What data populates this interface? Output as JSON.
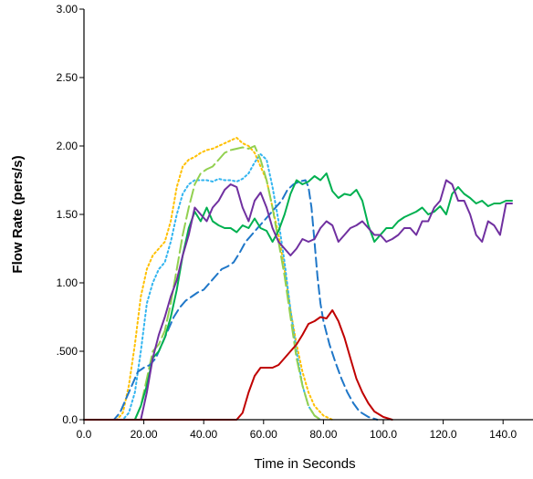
{
  "chart_data": {
    "type": "line",
    "title": "",
    "xlabel": "Time in Seconds",
    "ylabel": "Flow Rate (pers/s)",
    "xlim": [
      0,
      150
    ],
    "ylim": [
      0,
      3
    ],
    "x_ticks": [
      "0.0",
      "20.00",
      "40.00",
      "60.00",
      "80.00",
      "100.0",
      "120.0",
      "140.0"
    ],
    "x_tick_values": [
      0,
      20,
      40,
      60,
      80,
      100,
      120,
      140
    ],
    "y_ticks": [
      "0.0",
      ".500",
      "1.00",
      "1.50",
      "2.00",
      "2.50",
      "3.00"
    ],
    "y_tick_values": [
      0,
      0.5,
      1.0,
      1.5,
      2.0,
      2.5,
      3.0
    ],
    "grid": false,
    "legend": "none",
    "series": [
      {
        "color": "#ffc000",
        "dash": "dotted",
        "points": [
          [
            0,
            0
          ],
          [
            11,
            0
          ],
          [
            13,
            0.05
          ],
          [
            15,
            0.25
          ],
          [
            17,
            0.55
          ],
          [
            19,
            0.9
          ],
          [
            21,
            1.1
          ],
          [
            23,
            1.2
          ],
          [
            25,
            1.25
          ],
          [
            27,
            1.3
          ],
          [
            29,
            1.45
          ],
          [
            31,
            1.7
          ],
          [
            33,
            1.85
          ],
          [
            35,
            1.9
          ],
          [
            37,
            1.92
          ],
          [
            39,
            1.95
          ],
          [
            41,
            1.97
          ],
          [
            43,
            1.98
          ],
          [
            45,
            2.0
          ],
          [
            47,
            2.02
          ],
          [
            49,
            2.04
          ],
          [
            51,
            2.06
          ],
          [
            53,
            2.02
          ],
          [
            55,
            2.0
          ],
          [
            57,
            1.95
          ],
          [
            59,
            1.85
          ],
          [
            61,
            1.75
          ],
          [
            63,
            1.55
          ],
          [
            65,
            1.35
          ],
          [
            67,
            1.1
          ],
          [
            69,
            0.8
          ],
          [
            71,
            0.55
          ],
          [
            73,
            0.35
          ],
          [
            75,
            0.2
          ],
          [
            77,
            0.1
          ],
          [
            80,
            0.03
          ],
          [
            83,
            0
          ]
        ]
      },
      {
        "color": "#33b5f0",
        "dash": "dotted",
        "points": [
          [
            0,
            0
          ],
          [
            13,
            0
          ],
          [
            15,
            0.05
          ],
          [
            17,
            0.2
          ],
          [
            19,
            0.5
          ],
          [
            21,
            0.85
          ],
          [
            23,
            1.0
          ],
          [
            25,
            1.1
          ],
          [
            27,
            1.15
          ],
          [
            29,
            1.3
          ],
          [
            31,
            1.5
          ],
          [
            33,
            1.65
          ],
          [
            35,
            1.72
          ],
          [
            37,
            1.75
          ],
          [
            39,
            1.75
          ],
          [
            41,
            1.75
          ],
          [
            43,
            1.74
          ],
          [
            45,
            1.76
          ],
          [
            47,
            1.75
          ],
          [
            49,
            1.75
          ],
          [
            51,
            1.74
          ],
          [
            53,
            1.76
          ],
          [
            55,
            1.8
          ],
          [
            57,
            1.88
          ],
          [
            59,
            1.94
          ],
          [
            61,
            1.9
          ],
          [
            63,
            1.7
          ],
          [
            65,
            1.45
          ],
          [
            67,
            1.15
          ],
          [
            69,
            0.8
          ],
          [
            71,
            0.5
          ],
          [
            73,
            0.25
          ],
          [
            75,
            0.1
          ],
          [
            77,
            0.03
          ],
          [
            79,
            0
          ]
        ]
      },
      {
        "color": "#92d050",
        "dash": "longdash",
        "points": [
          [
            0,
            0
          ],
          [
            17,
            0
          ],
          [
            19,
            0.1
          ],
          [
            21,
            0.3
          ],
          [
            23,
            0.5
          ],
          [
            25,
            0.55
          ],
          [
            27,
            0.65
          ],
          [
            29,
            0.85
          ],
          [
            31,
            1.1
          ],
          [
            33,
            1.35
          ],
          [
            35,
            1.55
          ],
          [
            37,
            1.72
          ],
          [
            39,
            1.8
          ],
          [
            41,
            1.83
          ],
          [
            43,
            1.85
          ],
          [
            45,
            1.9
          ],
          [
            47,
            1.95
          ],
          [
            49,
            1.97
          ],
          [
            51,
            1.98
          ],
          [
            53,
            1.99
          ],
          [
            55,
            1.98
          ],
          [
            57,
            2.0
          ],
          [
            59,
            1.9
          ],
          [
            61,
            1.75
          ],
          [
            63,
            1.55
          ],
          [
            65,
            1.3
          ],
          [
            67,
            1.05
          ],
          [
            69,
            0.75
          ],
          [
            71,
            0.45
          ],
          [
            73,
            0.25
          ],
          [
            75,
            0.1
          ],
          [
            77,
            0.03
          ],
          [
            79,
            0
          ]
        ]
      },
      {
        "color": "#1f77c8",
        "dash": "dashed",
        "points": [
          [
            0,
            0
          ],
          [
            10,
            0
          ],
          [
            12,
            0.05
          ],
          [
            14,
            0.15
          ],
          [
            16,
            0.25
          ],
          [
            18,
            0.35
          ],
          [
            20,
            0.38
          ],
          [
            22,
            0.4
          ],
          [
            24,
            0.45
          ],
          [
            26,
            0.55
          ],
          [
            28,
            0.65
          ],
          [
            30,
            0.75
          ],
          [
            32,
            0.82
          ],
          [
            34,
            0.87
          ],
          [
            36,
            0.9
          ],
          [
            38,
            0.93
          ],
          [
            40,
            0.95
          ],
          [
            42,
            1.0
          ],
          [
            44,
            1.05
          ],
          [
            46,
            1.1
          ],
          [
            48,
            1.12
          ],
          [
            50,
            1.15
          ],
          [
            52,
            1.22
          ],
          [
            54,
            1.3
          ],
          [
            56,
            1.35
          ],
          [
            58,
            1.4
          ],
          [
            60,
            1.45
          ],
          [
            62,
            1.5
          ],
          [
            64,
            1.55
          ],
          [
            66,
            1.6
          ],
          [
            68,
            1.68
          ],
          [
            70,
            1.72
          ],
          [
            72,
            1.74
          ],
          [
            74,
            1.75
          ],
          [
            75,
            1.7
          ],
          [
            76,
            1.55
          ],
          [
            77,
            1.3
          ],
          [
            78,
            1.05
          ],
          [
            79,
            0.85
          ],
          [
            80,
            0.72
          ],
          [
            82,
            0.55
          ],
          [
            84,
            0.42
          ],
          [
            86,
            0.3
          ],
          [
            88,
            0.2
          ],
          [
            90,
            0.12
          ],
          [
            92,
            0.06
          ],
          [
            95,
            0.02
          ],
          [
            98,
            0
          ]
        ]
      },
      {
        "color": "#00b050",
        "dash": "solid",
        "points": [
          [
            0,
            0
          ],
          [
            17,
            0
          ],
          [
            19,
            0.1
          ],
          [
            21,
            0.25
          ],
          [
            23,
            0.45
          ],
          [
            25,
            0.5
          ],
          [
            27,
            0.6
          ],
          [
            29,
            0.75
          ],
          [
            31,
            0.95
          ],
          [
            33,
            1.2
          ],
          [
            35,
            1.4
          ],
          [
            37,
            1.52
          ],
          [
            39,
            1.45
          ],
          [
            41,
            1.55
          ],
          [
            43,
            1.45
          ],
          [
            45,
            1.42
          ],
          [
            47,
            1.4
          ],
          [
            49,
            1.4
          ],
          [
            51,
            1.37
          ],
          [
            53,
            1.42
          ],
          [
            55,
            1.4
          ],
          [
            57,
            1.47
          ],
          [
            59,
            1.4
          ],
          [
            61,
            1.38
          ],
          [
            63,
            1.3
          ],
          [
            65,
            1.38
          ],
          [
            67,
            1.5
          ],
          [
            69,
            1.65
          ],
          [
            71,
            1.75
          ],
          [
            73,
            1.72
          ],
          [
            75,
            1.74
          ],
          [
            77,
            1.78
          ],
          [
            79,
            1.75
          ],
          [
            81,
            1.8
          ],
          [
            83,
            1.67
          ],
          [
            85,
            1.62
          ],
          [
            87,
            1.65
          ],
          [
            89,
            1.64
          ],
          [
            91,
            1.68
          ],
          [
            93,
            1.6
          ],
          [
            95,
            1.42
          ],
          [
            97,
            1.3
          ],
          [
            99,
            1.35
          ],
          [
            101,
            1.4
          ],
          [
            103,
            1.4
          ],
          [
            105,
            1.45
          ],
          [
            107,
            1.48
          ],
          [
            109,
            1.5
          ],
          [
            111,
            1.52
          ],
          [
            113,
            1.55
          ],
          [
            115,
            1.5
          ],
          [
            117,
            1.52
          ],
          [
            119,
            1.56
          ],
          [
            121,
            1.5
          ],
          [
            123,
            1.65
          ],
          [
            125,
            1.7
          ],
          [
            127,
            1.65
          ],
          [
            129,
            1.62
          ],
          [
            131,
            1.58
          ],
          [
            133,
            1.6
          ],
          [
            135,
            1.56
          ],
          [
            137,
            1.58
          ],
          [
            139,
            1.58
          ],
          [
            141,
            1.6
          ],
          [
            143,
            1.6
          ]
        ]
      },
      {
        "color": "#7030a0",
        "dash": "solid",
        "points": [
          [
            0,
            0
          ],
          [
            19,
            0
          ],
          [
            21,
            0.2
          ],
          [
            23,
            0.45
          ],
          [
            25,
            0.62
          ],
          [
            27,
            0.75
          ],
          [
            29,
            0.9
          ],
          [
            31,
            1.02
          ],
          [
            33,
            1.2
          ],
          [
            35,
            1.35
          ],
          [
            37,
            1.55
          ],
          [
            39,
            1.5
          ],
          [
            41,
            1.45
          ],
          [
            43,
            1.55
          ],
          [
            45,
            1.6
          ],
          [
            47,
            1.68
          ],
          [
            49,
            1.72
          ],
          [
            51,
            1.7
          ],
          [
            53,
            1.55
          ],
          [
            55,
            1.45
          ],
          [
            57,
            1.6
          ],
          [
            59,
            1.66
          ],
          [
            61,
            1.55
          ],
          [
            63,
            1.4
          ],
          [
            65,
            1.3
          ],
          [
            67,
            1.25
          ],
          [
            69,
            1.2
          ],
          [
            71,
            1.25
          ],
          [
            73,
            1.32
          ],
          [
            75,
            1.3
          ],
          [
            77,
            1.32
          ],
          [
            79,
            1.4
          ],
          [
            81,
            1.45
          ],
          [
            83,
            1.42
          ],
          [
            85,
            1.3
          ],
          [
            87,
            1.35
          ],
          [
            89,
            1.4
          ],
          [
            91,
            1.42
          ],
          [
            93,
            1.45
          ],
          [
            95,
            1.4
          ],
          [
            97,
            1.35
          ],
          [
            99,
            1.35
          ],
          [
            101,
            1.3
          ],
          [
            103,
            1.32
          ],
          [
            105,
            1.35
          ],
          [
            107,
            1.4
          ],
          [
            109,
            1.4
          ],
          [
            111,
            1.35
          ],
          [
            113,
            1.45
          ],
          [
            115,
            1.45
          ],
          [
            117,
            1.55
          ],
          [
            119,
            1.6
          ],
          [
            121,
            1.75
          ],
          [
            123,
            1.72
          ],
          [
            125,
            1.6
          ],
          [
            127,
            1.6
          ],
          [
            129,
            1.5
          ],
          [
            131,
            1.35
          ],
          [
            133,
            1.3
          ],
          [
            135,
            1.45
          ],
          [
            137,
            1.42
          ],
          [
            139,
            1.35
          ],
          [
            141,
            1.58
          ],
          [
            143,
            1.58
          ]
        ]
      },
      {
        "color": "#c00000",
        "dash": "solid",
        "points": [
          [
            0,
            0
          ],
          [
            51,
            0
          ],
          [
            53,
            0.05
          ],
          [
            55,
            0.2
          ],
          [
            57,
            0.32
          ],
          [
            59,
            0.38
          ],
          [
            61,
            0.38
          ],
          [
            63,
            0.38
          ],
          [
            65,
            0.4
          ],
          [
            67,
            0.45
          ],
          [
            69,
            0.5
          ],
          [
            71,
            0.55
          ],
          [
            73,
            0.62
          ],
          [
            75,
            0.7
          ],
          [
            77,
            0.72
          ],
          [
            79,
            0.75
          ],
          [
            81,
            0.74
          ],
          [
            83,
            0.8
          ],
          [
            85,
            0.72
          ],
          [
            87,
            0.6
          ],
          [
            89,
            0.45
          ],
          [
            91,
            0.3
          ],
          [
            93,
            0.2
          ],
          [
            95,
            0.12
          ],
          [
            97,
            0.06
          ],
          [
            100,
            0.02
          ],
          [
            103,
            0
          ]
        ]
      }
    ]
  }
}
